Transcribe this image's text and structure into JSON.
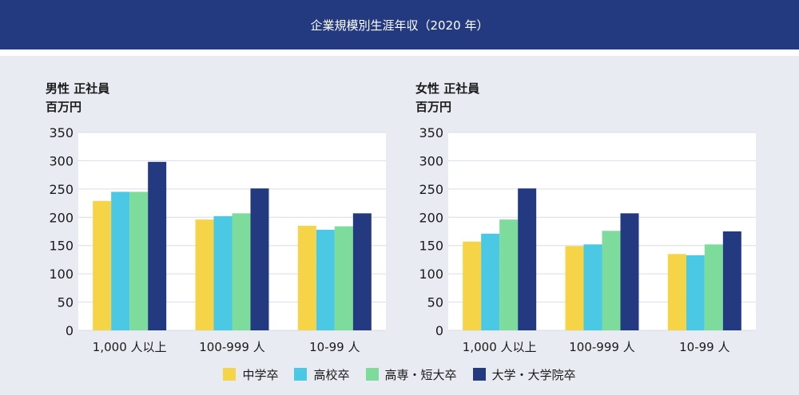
{
  "header": {
    "title": "企業規模別生涯年収（2020 年）"
  },
  "colors": {
    "header_bg": "#243a80",
    "series": [
      "#f5d547",
      "#4bc8e3",
      "#7ddc9b",
      "#243a80"
    ]
  },
  "chart_data": [
    {
      "type": "bar",
      "title": "男性 正社員",
      "ylabel": "百万円",
      "categories": [
        "1,000 人以上",
        "100-999 人",
        "10-99 人"
      ],
      "ylim": [
        0,
        350
      ],
      "yticks": [
        0,
        50,
        100,
        150,
        200,
        250,
        300,
        350
      ],
      "grid": true,
      "series": [
        {
          "name": "中学卒",
          "values": [
            229,
            196,
            185
          ]
        },
        {
          "name": "高校卒",
          "values": [
            245,
            202,
            178
          ]
        },
        {
          "name": "高専・短大卒",
          "values": [
            245,
            207,
            184
          ]
        },
        {
          "name": "大学・大学院卒",
          "values": [
            298,
            251,
            207
          ]
        }
      ]
    },
    {
      "type": "bar",
      "title": "女性 正社員",
      "ylabel": "百万円",
      "categories": [
        "1,000 人以上",
        "100-999 人",
        "10-99 人"
      ],
      "ylim": [
        0,
        350
      ],
      "yticks": [
        0,
        50,
        100,
        150,
        200,
        250,
        300,
        350
      ],
      "grid": true,
      "series": [
        {
          "name": "中学卒",
          "values": [
            157,
            149,
            135
          ]
        },
        {
          "name": "高校卒",
          "values": [
            171,
            152,
            133
          ]
        },
        {
          "name": "高専・短大卒",
          "values": [
            196,
            176,
            152
          ]
        },
        {
          "name": "大学・大学院卒",
          "values": [
            251,
            207,
            175
          ]
        }
      ]
    }
  ],
  "legend": {
    "position": "bottom",
    "items": [
      "中学卒",
      "高校卒",
      "高専・短大卒",
      "大学・大学院卒"
    ]
  }
}
